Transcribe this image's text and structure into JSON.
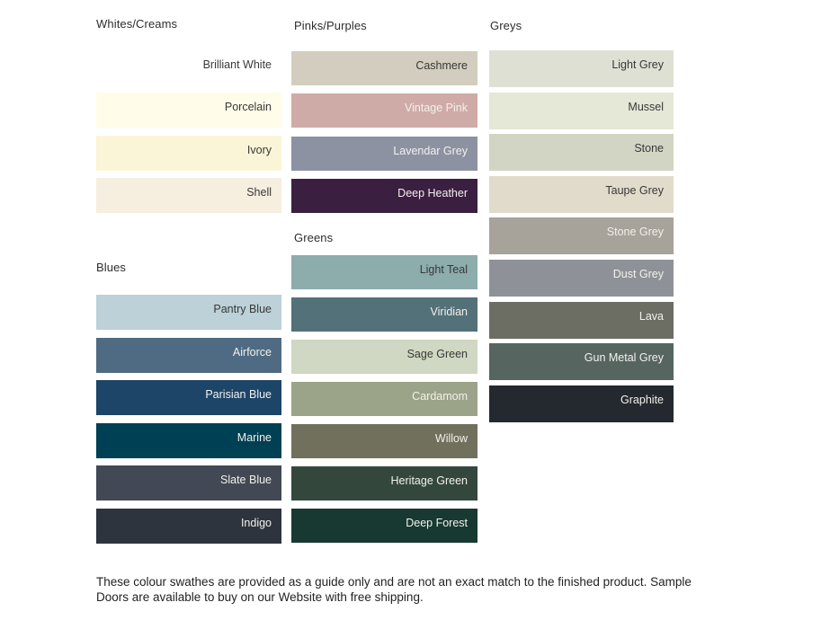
{
  "page": {
    "background": "#ffffff",
    "label_dark_text": "#383838",
    "label_light_text": "#f2f1ec"
  },
  "groups": [
    {
      "id": "whites",
      "title": "Whites/Creams",
      "swatches": [
        {
          "label": "Brilliant White",
          "color": "#ffffff",
          "text": "dark"
        },
        {
          "label": "Porcelain",
          "color": "#fffcea",
          "text": "dark"
        },
        {
          "label": "Ivory",
          "color": "#fbf5d8",
          "text": "dark"
        },
        {
          "label": "Shell",
          "color": "#f6eedf",
          "text": "dark"
        }
      ]
    },
    {
      "id": "pinks",
      "title": "Pinks/Purples",
      "swatches": [
        {
          "label": "Cashmere",
          "color": "#d2cdbe",
          "text": "dark"
        },
        {
          "label": "Vintage Pink",
          "color": "#cfaba7",
          "text": "light"
        },
        {
          "label": "Lavendar Grey",
          "color": "#8d92a2",
          "text": "light"
        },
        {
          "label": "Deep Heather",
          "color": "#3b1f40",
          "text": "light"
        }
      ]
    },
    {
      "id": "greys",
      "title": "Greys",
      "swatches": [
        {
          "label": "Light Grey",
          "color": "#dfe0d4",
          "text": "dark"
        },
        {
          "label": "Mussel",
          "color": "#e5e7d7",
          "text": "dark"
        },
        {
          "label": "Stone",
          "color": "#d2d5c3",
          "text": "dark"
        },
        {
          "label": "Taupe Grey",
          "color": "#e1dbcb",
          "text": "dark"
        },
        {
          "label": "Stone Grey",
          "color": "#a7a29a",
          "text": "light"
        },
        {
          "label": "Dust Grey",
          "color": "#8f9198",
          "text": "light"
        },
        {
          "label": "Lava",
          "color": "#6c6d63",
          "text": "light"
        },
        {
          "label": "Gun Metal Grey",
          "color": "#576561",
          "text": "light"
        },
        {
          "label": "Graphite",
          "color": "#23292f",
          "text": "light"
        }
      ]
    },
    {
      "id": "blues",
      "title": "Blues",
      "swatches": [
        {
          "label": "Pantry Blue",
          "color": "#bcd1d8",
          "text": "dark"
        },
        {
          "label": "Airforce",
          "color": "#4f6b83",
          "text": "light"
        },
        {
          "label": "Parisian Blue",
          "color": "#1d4568",
          "text": "light"
        },
        {
          "label": "Marine",
          "color": "#004054",
          "text": "light"
        },
        {
          "label": "Slate Blue",
          "color": "#424954",
          "text": "light"
        },
        {
          "label": "Indigo",
          "color": "#2d343e",
          "text": "light"
        }
      ]
    },
    {
      "id": "greens",
      "title": "Greens",
      "swatches": [
        {
          "label": "Light Teal",
          "color": "#8dacac",
          "text": "dark"
        },
        {
          "label": "Viridian",
          "color": "#537178",
          "text": "light"
        },
        {
          "label": "Sage Green",
          "color": "#d0d7c2",
          "text": "dark"
        },
        {
          "label": "Cardamom",
          "color": "#9ba388",
          "text": "light"
        },
        {
          "label": "Willow",
          "color": "#70705d",
          "text": "light"
        },
        {
          "label": "Heritage Green",
          "color": "#34473d",
          "text": "light"
        },
        {
          "label": "Deep Forest",
          "color": "#173931",
          "text": "light"
        }
      ]
    }
  ],
  "footer": {
    "line1": "These colour swathes are provided as a guide only and are not an exact match to the finished product.  Sample",
    "line2": "Doors are available to buy on our Website with free shipping."
  }
}
